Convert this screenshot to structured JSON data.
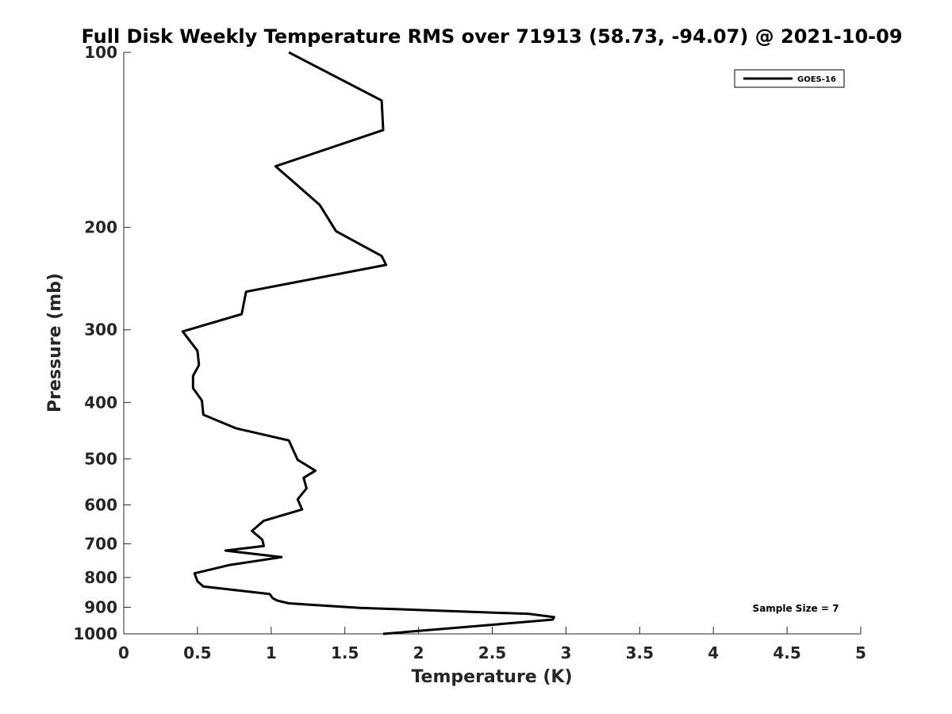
{
  "chart_data": {
    "type": "line",
    "title": "Full Disk Weekly Temperature RMS over 71913 (58.73, -94.07) @ 2021-10-09",
    "xlabel": "Temperature (K)",
    "ylabel": "Pressure (mb)",
    "xlim": [
      0,
      5
    ],
    "ylim": [
      1000,
      100
    ],
    "yscale": "log",
    "y_reversed": true,
    "xticks": [
      0,
      0.5,
      1,
      1.5,
      2,
      2.5,
      3,
      3.5,
      4,
      4.5,
      5
    ],
    "xtick_labels": [
      "0",
      "0.5",
      "1",
      "1.5",
      "2",
      "2.5",
      "3",
      "3.5",
      "4",
      "4.5",
      "5"
    ],
    "yticks": [
      100,
      200,
      300,
      400,
      500,
      600,
      700,
      800,
      900,
      1000
    ],
    "ytick_labels": [
      "100",
      "200",
      "300",
      "400",
      "500",
      "600",
      "700",
      "800",
      "900",
      "1000"
    ],
    "grid": false,
    "legend_position": "top-right",
    "annotation": "Sample Size = 7",
    "line_color": "#000000",
    "series": [
      {
        "name": "GOES-16",
        "x": [
          1.12,
          1.75,
          1.76,
          1.03,
          1.33,
          1.44,
          1.75,
          1.78,
          0.83,
          0.8,
          0.4,
          0.5,
          0.51,
          0.47,
          0.47,
          0.53,
          0.54,
          0.76,
          1.12,
          1.18,
          1.3,
          1.22,
          1.24,
          1.18,
          1.21,
          0.95,
          0.87,
          0.94,
          0.95,
          0.69,
          1.07,
          0.72,
          0.48,
          0.5,
          0.54,
          0.99,
          1.01,
          1.04,
          1.12,
          1.6,
          2.75,
          2.92,
          2.91,
          2.55,
          1.76
        ],
        "y": [
          100,
          121,
          136,
          157,
          183,
          203,
          224,
          232,
          258,
          282,
          302,
          326,
          345,
          360,
          378,
          397,
          420,
          443,
          465,
          502,
          524,
          539,
          562,
          587,
          611,
          639,
          665,
          689,
          706,
          719,
          738,
          761,
          787,
          812,
          829,
          854,
          868,
          876,
          886,
          902,
          924,
          936,
          945,
          962,
          1000
        ]
      }
    ]
  }
}
